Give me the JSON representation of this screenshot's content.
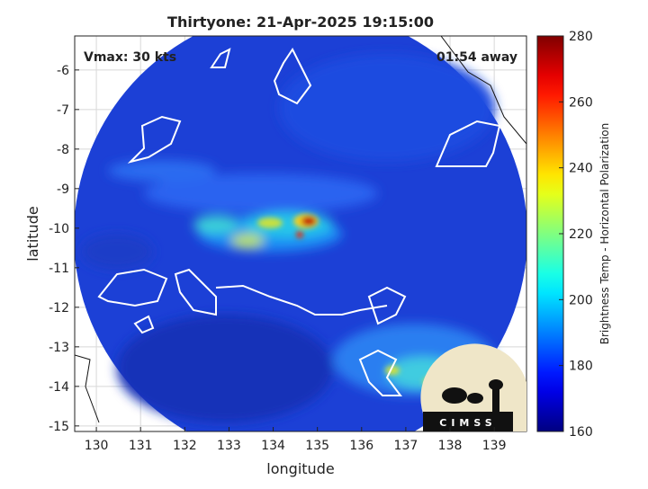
{
  "chart_data": {
    "type": "map",
    "title": "Thirtyone: 21-Apr-2025 19:15:00",
    "annotations": [
      "Vmax: 30 kts",
      "01:54 away"
    ],
    "xlabel": "longitude",
    "ylabel": "latitude",
    "xlim": [
      129.51,
      139.73
    ],
    "xticks": [
      130,
      131,
      132,
      133,
      134,
      135,
      136,
      137,
      138,
      139
    ],
    "ylim": [
      -15.14,
      -5.14
    ],
    "yticks": [
      -15,
      -14,
      -13,
      -12,
      -11,
      -10,
      -9,
      -8,
      -7,
      -6
    ],
    "grid": true,
    "colorbar_label": "Brightness Temp - Horizontal Polarization",
    "clim": [
      160,
      280
    ],
    "cticks": [
      160,
      180,
      200,
      220,
      240,
      260,
      280
    ],
    "colormap": "jet",
    "logo_text": "CIMSS"
  }
}
